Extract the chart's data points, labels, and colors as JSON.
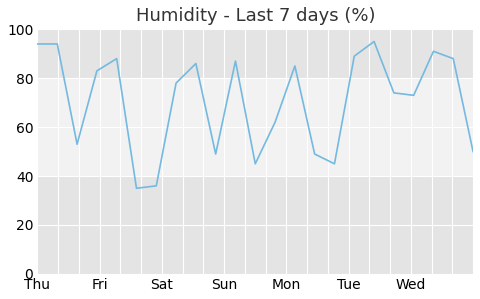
{
  "title": "Humidity - Last 7 days (%)",
  "x_labels": [
    "Thu",
    "Fri",
    "Sat",
    "Sun",
    "Mon",
    "Tue",
    "Wed"
  ],
  "y_values": [
    94,
    94,
    53,
    83,
    88,
    35,
    36,
    78,
    86,
    49,
    87,
    45,
    62,
    85,
    49,
    45,
    89,
    95,
    74,
    73,
    91,
    88,
    50
  ],
  "num_points": 23,
  "num_days": 7,
  "ylim": [
    0,
    100
  ],
  "yticks": [
    0,
    20,
    40,
    60,
    80,
    100
  ],
  "line_color": "#74b9e0",
  "bg_color": "#ffffff",
  "plot_bg_light": "#f2f2f2",
  "plot_bg_dark": "#e4e4e4",
  "grid_color": "#ffffff",
  "title_fontsize": 13,
  "tick_fontsize": 10,
  "band_light_ranges": [
    [
      40,
      80
    ]
  ],
  "band_dark_ranges": [
    [
      0,
      40
    ],
    [
      80,
      100
    ]
  ]
}
